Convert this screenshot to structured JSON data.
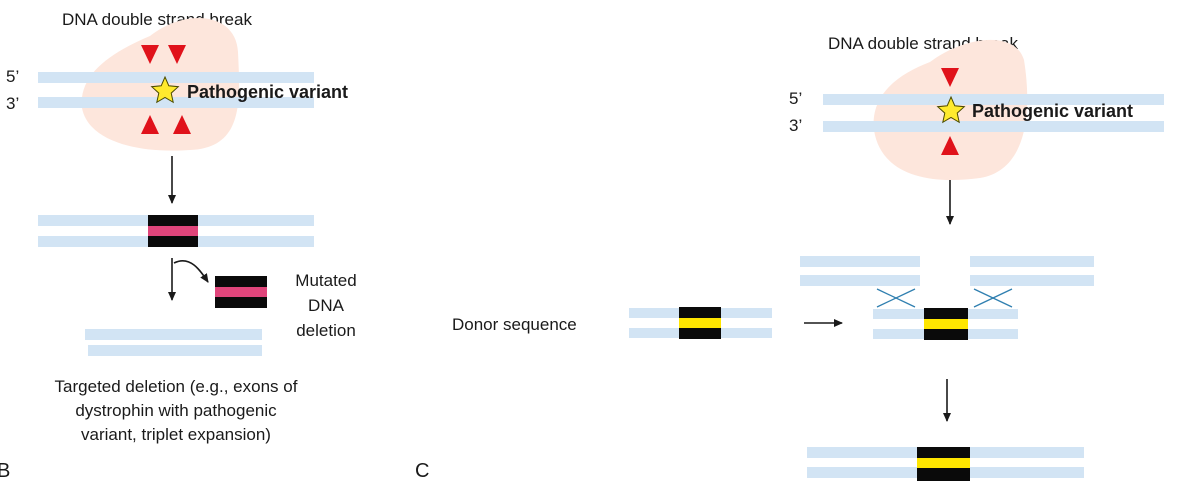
{
  "panel_b": {
    "letter": "B",
    "title": "DNA double strand break",
    "strand_5": "5’",
    "strand_3": "3’",
    "variant_label": "Pathogenic variant",
    "deletion_label": [
      "Mutated",
      "DNA",
      "deletion"
    ],
    "caption": [
      "Targeted deletion (e.g., exons of",
      "dystrophin with pathogenic",
      "variant, triplet expansion)"
    ]
  },
  "panel_c": {
    "letter": "C",
    "title": "DNA double strand break",
    "strand_5": "5’",
    "strand_3": "3’",
    "variant_label": "Pathogenic variant",
    "donor_label": "Donor sequence"
  },
  "colors": {
    "strand": "#d2e4f4",
    "nuclease_blob": "#fde6dc",
    "cut_marker": "#e0121b",
    "star_fill": "#ffea2e",
    "segment_dark": "#0a0a0a",
    "mutated_band": "#e0457b",
    "donor_band": "#ffe600",
    "crossover": "#2f7fb0",
    "arrow": "#1a1a1a"
  },
  "icons": [
    "cut-triangle-icon",
    "star-icon",
    "arrow-down-icon",
    "arrow-right-icon",
    "curved-arrow-icon",
    "crossover-x-icon"
  ]
}
